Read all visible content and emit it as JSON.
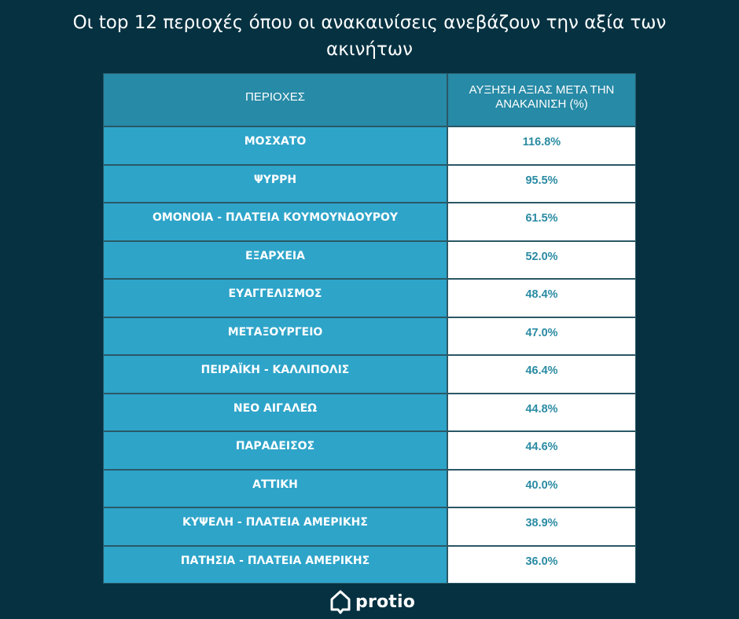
{
  "chart_data": {
    "type": "table",
    "title_lines": [
      "Οι  top 12 περιοχές όπου οι ανακαινίσεις ανεβάζουν την αξία των",
      "ακινήτων"
    ],
    "columns": [
      "ΠΕΡΙΟΧΕΣ",
      "ΑΥΞΗΣΗ ΑΞΙΑΣ ΜΕΤΑ ΤΗΝ ΑΝΑΚΑΙΝΙΣΗ (%)"
    ],
    "rows": [
      {
        "area": "ΜΟΣΧΑΤΟ",
        "increase": "116.8%"
      },
      {
        "area": "ΨΥΡΡΗ",
        "increase": "95.5%"
      },
      {
        "area": "ΟΜΟΝΟΙΑ - ΠΛΑΤΕΙΑ ΚΟΥΜΟΥΝΔΟΥΡΟΥ",
        "increase": "61.5%"
      },
      {
        "area": "ΕΞΑΡΧΕΙΑ",
        "increase": "52.0%"
      },
      {
        "area": "ΕΥΑΓΓΕΛΙΣΜΟΣ",
        "increase": "48.4%"
      },
      {
        "area": "ΜΕΤΑΞΟΥΡΓΕΙΟ",
        "increase": "47.0%"
      },
      {
        "area": "ΠΕΙΡΑΪΚΗ - ΚΑΛΛΙΠΟΛΙΣ",
        "increase": "46.4%"
      },
      {
        "area": "ΝΕΟ ΑΙΓΑΛΕΩ",
        "increase": "44.8%"
      },
      {
        "area": "ΠΑΡΑΔΕΙΣΟΣ",
        "increase": "44.6%"
      },
      {
        "area": "ΑΤΤΙΚΗ",
        "increase": "40.0%"
      },
      {
        "area": "ΚΥΨΕΛΗ - ΠΛΑΤΕΙΑ ΑΜΕΡΙΚΗΣ",
        "increase": "38.9%"
      },
      {
        "area": "ΠΑΤΗΣΙΑ - ΠΛΑΤΕΙΑ ΑΜΕΡΙΚΗΣ",
        "increase": "36.0%"
      }
    ]
  },
  "brand": {
    "name": "protio",
    "icon": "house-icon"
  },
  "colors": {
    "background": "#053141",
    "header_cell": "#278aa6",
    "area_cell": "#2ea4c9",
    "value_cell": "#ffffff",
    "value_text": "#2a8ba3"
  }
}
